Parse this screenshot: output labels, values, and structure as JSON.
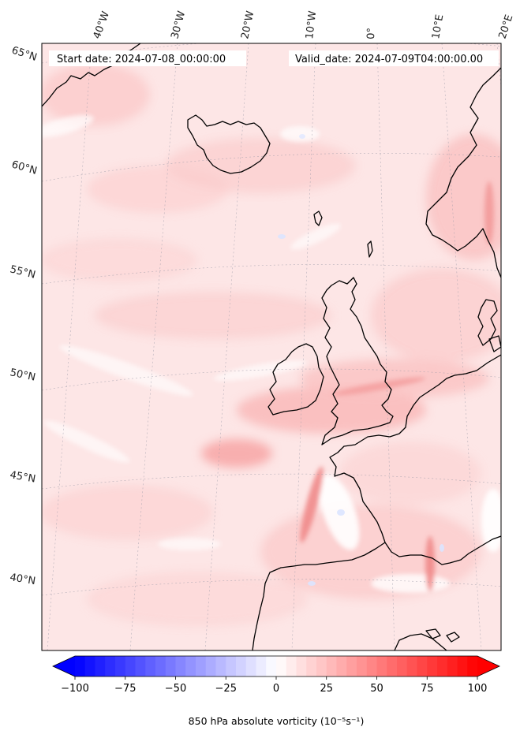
{
  "header": {
    "start_date": "Start date: 2024-07-08_00:00:00",
    "valid_date": "Valid_date: 2024-07-09T04:00:00.00"
  },
  "map": {
    "longitude_labels": [
      "40°W",
      "30°W",
      "20°W",
      "10°W",
      "0°",
      "10°E",
      "20°E"
    ],
    "latitude_labels": [
      "65°N",
      "60°N",
      "55°N",
      "50°N",
      "45°N",
      "40°N"
    ],
    "field": "850 hPa absolute vorticity"
  },
  "colorbar": {
    "min": -100,
    "max": 100,
    "ticks": [
      "−100",
      "−75",
      "−50",
      "−25",
      "0",
      "25",
      "50",
      "75",
      "100"
    ],
    "label": "850 hPa absolute vorticity (10⁻⁵s⁻¹)",
    "low_color": "#0000ff",
    "mid_color": "#ffffff",
    "high_color": "#ff0000"
  }
}
